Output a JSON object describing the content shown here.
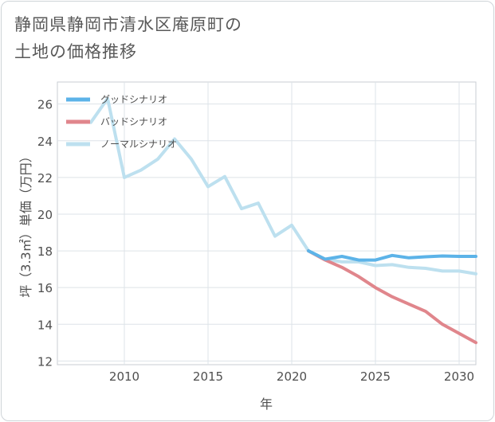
{
  "title_line1": "静岡県静岡市清水区庵原町の",
  "title_line2": "土地の価格推移",
  "chart_data": {
    "type": "line",
    "title": "静岡県静岡市清水区庵原町の土地の価格推移",
    "xlabel": "年",
    "ylabel": "坪（3.3㎡）単価（万円）",
    "xlim": [
      2006,
      2031
    ],
    "ylim": [
      11.8,
      27.2
    ],
    "xticks": [
      2010,
      2015,
      2020,
      2025,
      2030
    ],
    "yticks": [
      12,
      14,
      16,
      18,
      20,
      22,
      24,
      26
    ],
    "legend_position": "top-left",
    "series": [
      {
        "name": "グッドシナリオ",
        "color": "#5cb3e8",
        "x": [
          2021,
          2022,
          2023,
          2024,
          2025,
          2026,
          2027,
          2028,
          2029,
          2030,
          2031
        ],
        "values": [
          18.0,
          17.55,
          17.7,
          17.5,
          17.5,
          17.75,
          17.62,
          17.68,
          17.72,
          17.7,
          17.7
        ]
      },
      {
        "name": "バッドシナリオ",
        "color": "#e0868c",
        "x": [
          2021,
          2022,
          2023,
          2024,
          2025,
          2026,
          2027,
          2028,
          2029,
          2030,
          2031
        ],
        "values": [
          18.0,
          17.5,
          17.1,
          16.6,
          16.0,
          15.5,
          15.1,
          14.7,
          14.0,
          13.5,
          13.0
        ]
      },
      {
        "name": "ノーマルシナリオ",
        "color": "#bde0ef",
        "x": [
          2008,
          2009,
          2010,
          2011,
          2012,
          2013,
          2014,
          2015,
          2016,
          2017,
          2018,
          2019,
          2020,
          2021,
          2022,
          2023,
          2024,
          2025,
          2026,
          2027,
          2028,
          2029,
          2030,
          2031
        ],
        "values": [
          25.0,
          26.3,
          22.0,
          22.4,
          23.0,
          24.1,
          23.0,
          21.5,
          22.05,
          20.3,
          20.6,
          18.8,
          19.4,
          18.0,
          17.55,
          17.4,
          17.4,
          17.2,
          17.25,
          17.1,
          17.05,
          16.9,
          16.9,
          16.75
        ]
      }
    ]
  }
}
